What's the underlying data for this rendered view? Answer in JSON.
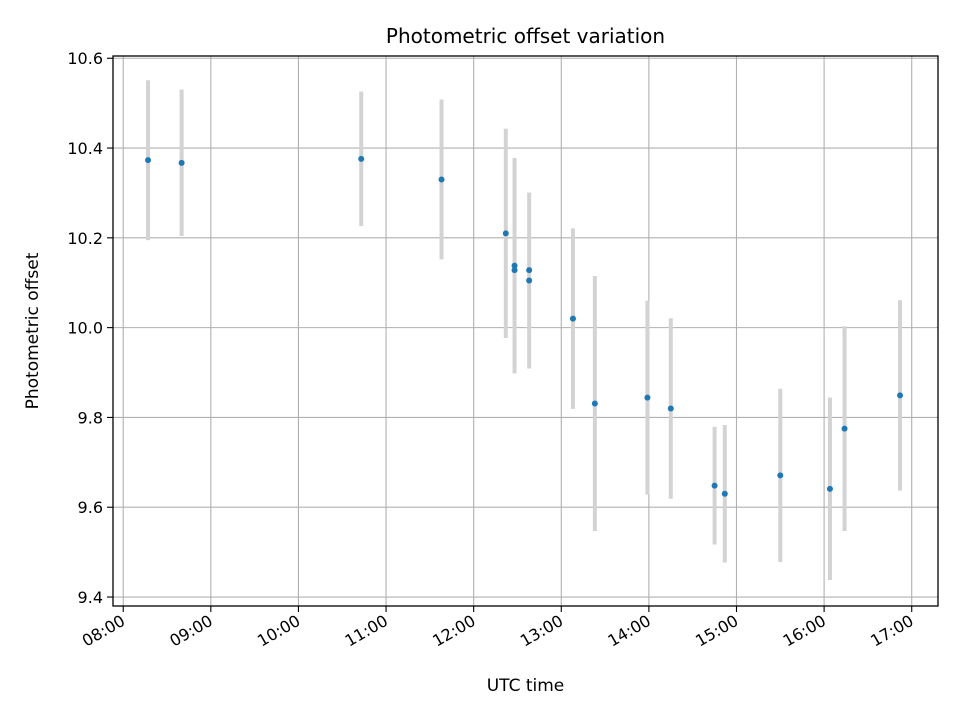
{
  "chart_data": {
    "type": "scatter",
    "title": "Photometric offset variation",
    "xlabel": "UTC time",
    "ylabel": "Photometric offset",
    "xlim": [
      "07:53",
      "17:18"
    ],
    "ylim": [
      9.38,
      10.605
    ],
    "grid": true,
    "x_ticks": [
      "08:00",
      "09:00",
      "10:00",
      "11:00",
      "12:00",
      "13:00",
      "14:00",
      "15:00",
      "16:00",
      "17:00"
    ],
    "y_ticks": [
      9.4,
      9.6,
      9.8,
      10.0,
      10.2,
      10.4,
      10.6
    ],
    "y_tick_labels": [
      "9.4",
      "9.6",
      "9.8",
      "10.0",
      "10.2",
      "10.4",
      "10.6"
    ],
    "series": [
      {
        "marker_color": "#1f77b4",
        "errorbar_color": "#d3d3d3",
        "points": [
          {
            "x": "08:17",
            "y": 10.373,
            "err": 0.178
          },
          {
            "x": "08:40",
            "y": 10.367,
            "err": 0.163
          },
          {
            "x": "10:43",
            "y": 10.376,
            "err": 0.15
          },
          {
            "x": "11:38",
            "y": 10.33,
            "err": 0.178
          },
          {
            "x": "12:22",
            "y": 10.21,
            "err": 0.233
          },
          {
            "x": "12:28",
            "y": 10.138,
            "err": 0.24
          },
          {
            "x": "12:28",
            "y": 10.128,
            "err": 0.0
          },
          {
            "x": "12:38",
            "y": 10.128,
            "err": 0.0
          },
          {
            "x": "12:38",
            "y": 10.105,
            "err": 0.196
          },
          {
            "x": "13:08",
            "y": 10.02,
            "err": 0.201
          },
          {
            "x": "13:23",
            "y": 9.831,
            "err": 0.284
          },
          {
            "x": "13:59",
            "y": 9.844,
            "err": 0.216
          },
          {
            "x": "14:15",
            "y": 9.82,
            "err": 0.201
          },
          {
            "x": "14:45",
            "y": 9.648,
            "err": 0.131
          },
          {
            "x": "14:52",
            "y": 9.63,
            "err": 0.153
          },
          {
            "x": "15:30",
            "y": 9.671,
            "err": 0.193
          },
          {
            "x": "16:04",
            "y": 9.641,
            "err": 0.203
          },
          {
            "x": "16:14",
            "y": 9.775,
            "err": 0.228
          },
          {
            "x": "16:52",
            "y": 9.849,
            "err": 0.212
          }
        ]
      }
    ]
  }
}
